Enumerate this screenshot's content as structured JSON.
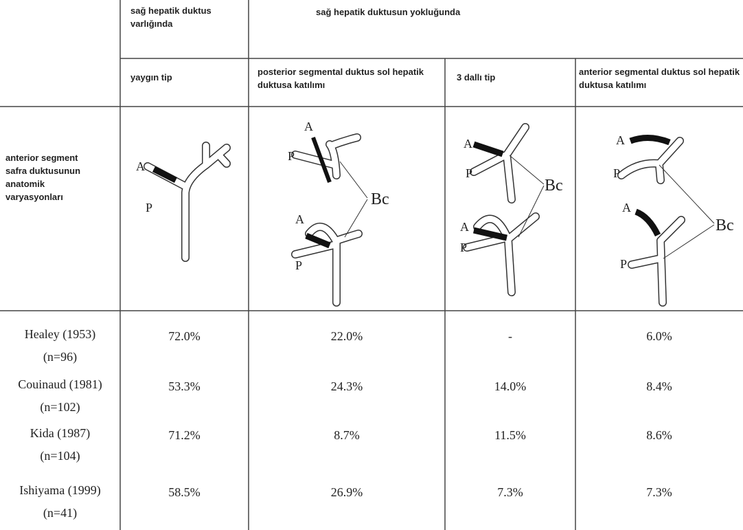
{
  "header": {
    "present_group": "sağ hepatik duktus varlığında",
    "absent_group": "sağ hepatik duktusun yokluğunda",
    "types": [
      "yaygın tip",
      "posterior segmental duktus sol hepatik duktusa katılımı",
      "3 dallı tip",
      "anterior segmental duktus sol hepatik duktusa katılımı"
    ]
  },
  "row_label": "anterior segment safra duktusunun anatomik varyasyonları",
  "diagrams": [
    {
      "labels": [
        "A",
        "P"
      ]
    },
    {
      "labels": [
        "A",
        "P",
        "A",
        "P",
        "Bc"
      ]
    },
    {
      "labels": [
        "A",
        "P",
        "A",
        "P",
        "Bc"
      ]
    },
    {
      "labels": [
        "A",
        "P",
        "A",
        "P",
        "Bc"
      ]
    }
  ],
  "table": {
    "rows": [
      {
        "study": "Healey (1953)",
        "n": "(n=96)",
        "values": [
          "72.0%",
          "22.0%",
          "-",
          "6.0%"
        ]
      },
      {
        "study": "Couinaud (1981)",
        "n": "(n=102)",
        "values": [
          "53.3%",
          "24.3%",
          "14.0%",
          "8.4%"
        ]
      },
      {
        "study": "Kida (1987)",
        "n": "(n=104)",
        "values": [
          "71.2%",
          "8.7%",
          "11.5%",
          "8.6%"
        ]
      },
      {
        "study": "Ishiyama (1999)",
        "n": "(n=41)",
        "values": [
          "58.5%",
          "26.9%",
          "7.3%",
          "7.3%"
        ]
      }
    ]
  }
}
